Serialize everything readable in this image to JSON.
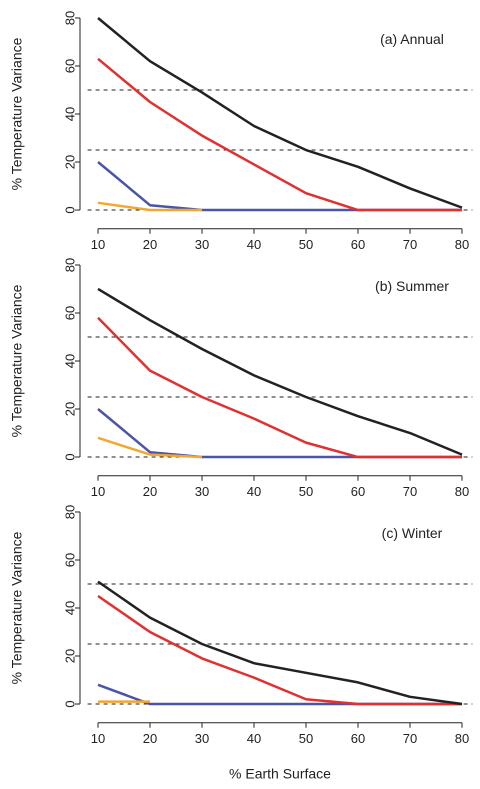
{
  "chart_data": [
    {
      "type": "line",
      "title": "(a) Annual",
      "y_label": "% Temperature Variance",
      "x": [
        10,
        20,
        30,
        40,
        50,
        60,
        70,
        80
      ],
      "series": [
        {
          "color": "#4a55a8",
          "values": [
            20,
            2,
            0,
            0,
            0,
            0,
            0,
            0
          ]
        },
        {
          "color": "#f0a830",
          "values": [
            3,
            0,
            0,
            null,
            null,
            null,
            null,
            null
          ]
        },
        {
          "color": "#e03030",
          "values": [
            63,
            45,
            31,
            19,
            7,
            0,
            0,
            0
          ]
        },
        {
          "color": "#222222",
          "values": [
            80,
            62,
            49,
            35,
            25,
            18,
            9,
            1
          ]
        }
      ],
      "reference_lines": [
        0,
        25,
        50
      ],
      "xlim": [
        8,
        82
      ],
      "ylim": [
        -3.2,
        83.2
      ],
      "xticks": [
        10,
        20,
        30,
        40,
        50,
        60,
        70,
        80
      ],
      "yticks": [
        0,
        20,
        40,
        60,
        80
      ]
    },
    {
      "type": "line",
      "title": "(b) Summer",
      "y_label": "% Temperature Variance",
      "x": [
        10,
        20,
        30,
        40,
        50,
        60,
        70,
        80
      ],
      "series": [
        {
          "color": "#4a55a8",
          "values": [
            20,
            2,
            0,
            0,
            0,
            0,
            0,
            0
          ]
        },
        {
          "color": "#f0a830",
          "values": [
            8,
            1,
            0,
            null,
            null,
            null,
            null,
            null
          ]
        },
        {
          "color": "#e03030",
          "values": [
            58,
            36,
            25,
            16,
            6,
            0,
            0,
            0
          ]
        },
        {
          "color": "#222222",
          "values": [
            70,
            57,
            45,
            34,
            25,
            17,
            10,
            1
          ]
        }
      ],
      "reference_lines": [
        0,
        25,
        50
      ],
      "xlim": [
        8,
        82
      ],
      "ylim": [
        -3.2,
        83.2
      ],
      "xticks": [
        10,
        20,
        30,
        40,
        50,
        60,
        70,
        80
      ],
      "yticks": [
        0,
        20,
        40,
        60,
        80
      ]
    },
    {
      "type": "line",
      "title": "(c) Winter",
      "y_label": "% Temperature Variance",
      "x_label": "% Earth Surface",
      "x": [
        10,
        20,
        30,
        40,
        50,
        60,
        70,
        80
      ],
      "series": [
        {
          "color": "#4a55a8",
          "values": [
            8,
            0,
            0,
            0,
            0,
            0,
            0,
            0
          ]
        },
        {
          "color": "#f0a830",
          "values": [
            1,
            1,
            null,
            null,
            null,
            null,
            null,
            null
          ]
        },
        {
          "color": "#e03030",
          "values": [
            45,
            30,
            19,
            11,
            2,
            0,
            0,
            0
          ]
        },
        {
          "color": "#222222",
          "values": [
            51,
            36,
            25,
            17,
            13,
            9,
            3,
            0
          ]
        }
      ],
      "reference_lines": [
        0,
        25,
        50
      ],
      "xlim": [
        8,
        82
      ],
      "ylim": [
        -3.2,
        83.2
      ],
      "xticks": [
        10,
        20,
        30,
        40,
        50,
        60,
        70,
        80
      ],
      "yticks": [
        0,
        20,
        40,
        60,
        80
      ]
    }
  ]
}
